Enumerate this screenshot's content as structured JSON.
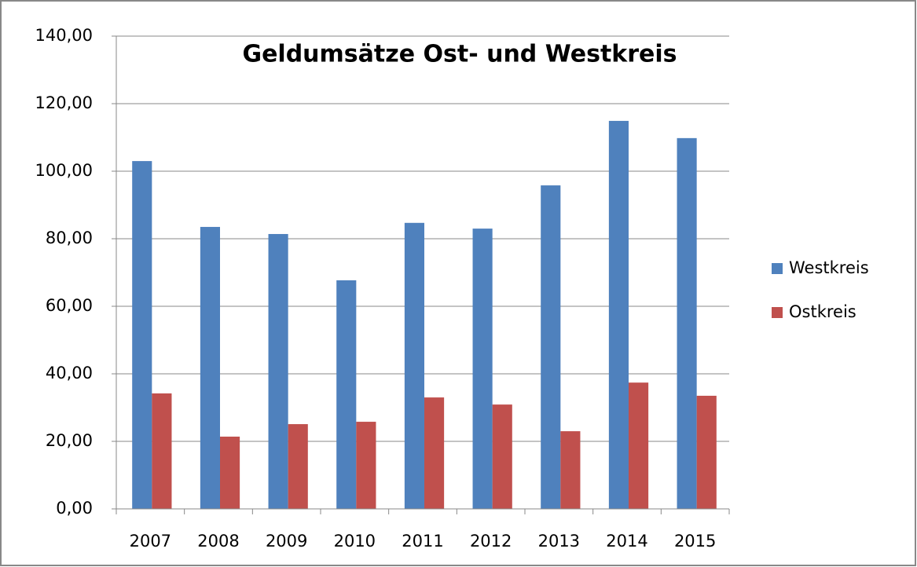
{
  "chart_data": {
    "type": "bar",
    "title": "Geldumsätze Ost- und Westkreis",
    "categories": [
      "2007",
      "2008",
      "2009",
      "2010",
      "2011",
      "2012",
      "2013",
      "2014",
      "2015"
    ],
    "series": [
      {
        "name": "Westkreis",
        "color": "#4f81bd",
        "values": [
          103,
          83.5,
          81.4,
          67.7,
          84.7,
          83,
          95.8,
          114.9,
          109.8
        ]
      },
      {
        "name": "Ostkreis",
        "color": "#c0504d",
        "values": [
          34.2,
          21.4,
          25.1,
          25.8,
          33,
          30.9,
          23,
          37.4,
          33.5
        ]
      }
    ],
    "ylim": [
      0,
      140
    ],
    "yticks": [
      {
        "value": 0,
        "label": "0,00"
      },
      {
        "value": 20,
        "label": "20,00"
      },
      {
        "value": 40,
        "label": "40,00"
      },
      {
        "value": 60,
        "label": "60,00"
      },
      {
        "value": 80,
        "label": "80,00"
      },
      {
        "value": 100,
        "label": "100,00"
      },
      {
        "value": 120,
        "label": "120,00"
      },
      {
        "value": 140,
        "label": "140,00"
      }
    ],
    "grid": true,
    "legend": "right"
  }
}
